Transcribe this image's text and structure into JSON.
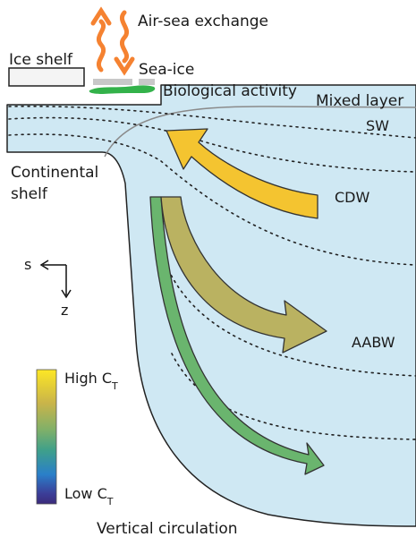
{
  "labels": {
    "air_sea_exchange": "Air-sea exchange",
    "ice_shelf": "Ice shelf",
    "sea_ice": "Sea-ice",
    "biological_activity": "Biological activity",
    "mixed_layer": "Mixed layer",
    "sw": "SW",
    "cdw": "CDW",
    "aabw": "AABW",
    "continental_shelf_line1": "Continental",
    "continental_shelf_line2": "shelf",
    "axis_s": "s",
    "axis_z": "z",
    "caption": "Vertical circulation"
  },
  "colorbar": {
    "high_label": "High C",
    "low_label": "Low C",
    "subscript": "T",
    "stops": [
      "#fde725",
      "#c9b44a",
      "#7fb069",
      "#3fa08a",
      "#2a7fc9",
      "#3b3f99",
      "#3b2a7a"
    ]
  },
  "colors": {
    "ocean": "#cfe8f3",
    "exchange_arrows": "#f58231",
    "sea_ice": "#c8c8c8",
    "biology": "#33b24a",
    "cdw_arrow": "#f4c430",
    "aabw_arrow": "#b8ad55",
    "deep_arrow": "#6ab56e"
  }
}
